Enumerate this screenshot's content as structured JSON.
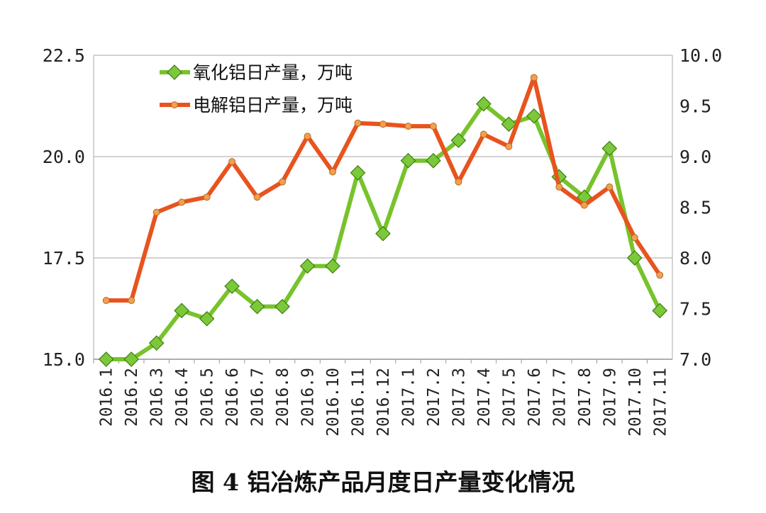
{
  "caption": "图 4 铝冶炼产品月度日产量变化情况",
  "chart_data": {
    "type": "line",
    "title": "",
    "x": [
      "2016.1",
      "2016.2",
      "2016.3",
      "2016.4",
      "2016.5",
      "2016.6",
      "2016.7",
      "2016.8",
      "2016.9",
      "2016.10",
      "2016.11",
      "2016.12",
      "2017.1",
      "2017.2",
      "2017.3",
      "2017.4",
      "2017.5",
      "2017.6",
      "2017.7",
      "2017.8",
      "2017.9",
      "2017.10",
      "2017.11"
    ],
    "left_axis": {
      "ylim": [
        15.0,
        22.5
      ],
      "ticks": [
        "15.0",
        "17.5",
        "20.0",
        "22.5"
      ],
      "tick_values": [
        15.0,
        17.5,
        20.0,
        22.5
      ]
    },
    "right_axis": {
      "ylim": [
        7.0,
        10.0
      ],
      "ticks": [
        "7.0",
        "7.5",
        "8.0",
        "8.5",
        "9.0",
        "9.5",
        "10.0"
      ],
      "tick_values": [
        7.0,
        7.5,
        8.0,
        8.5,
        9.0,
        9.5,
        10.0
      ]
    },
    "grid": true,
    "legend_position": "top-left",
    "series": [
      {
        "name": "氧化铝日产量，万吨",
        "axis": "left",
        "color": "#77c32c",
        "marker": "diamond",
        "values": [
          15.0,
          15.0,
          15.4,
          16.2,
          16.0,
          16.8,
          16.3,
          16.3,
          17.3,
          17.3,
          19.6,
          18.1,
          19.9,
          19.9,
          20.4,
          21.3,
          20.8,
          21.0,
          19.5,
          19.0,
          20.2,
          17.5,
          16.2
        ]
      },
      {
        "name": "电解铝日产量，万吨",
        "axis": "right",
        "color": "#e8531e",
        "marker": "circle",
        "values": [
          7.58,
          7.58,
          8.45,
          8.55,
          8.6,
          8.95,
          8.6,
          8.75,
          9.2,
          8.85,
          9.33,
          9.32,
          9.3,
          9.3,
          8.75,
          9.22,
          9.1,
          9.78,
          8.7,
          8.52,
          8.7,
          8.2,
          7.83
        ]
      }
    ]
  }
}
